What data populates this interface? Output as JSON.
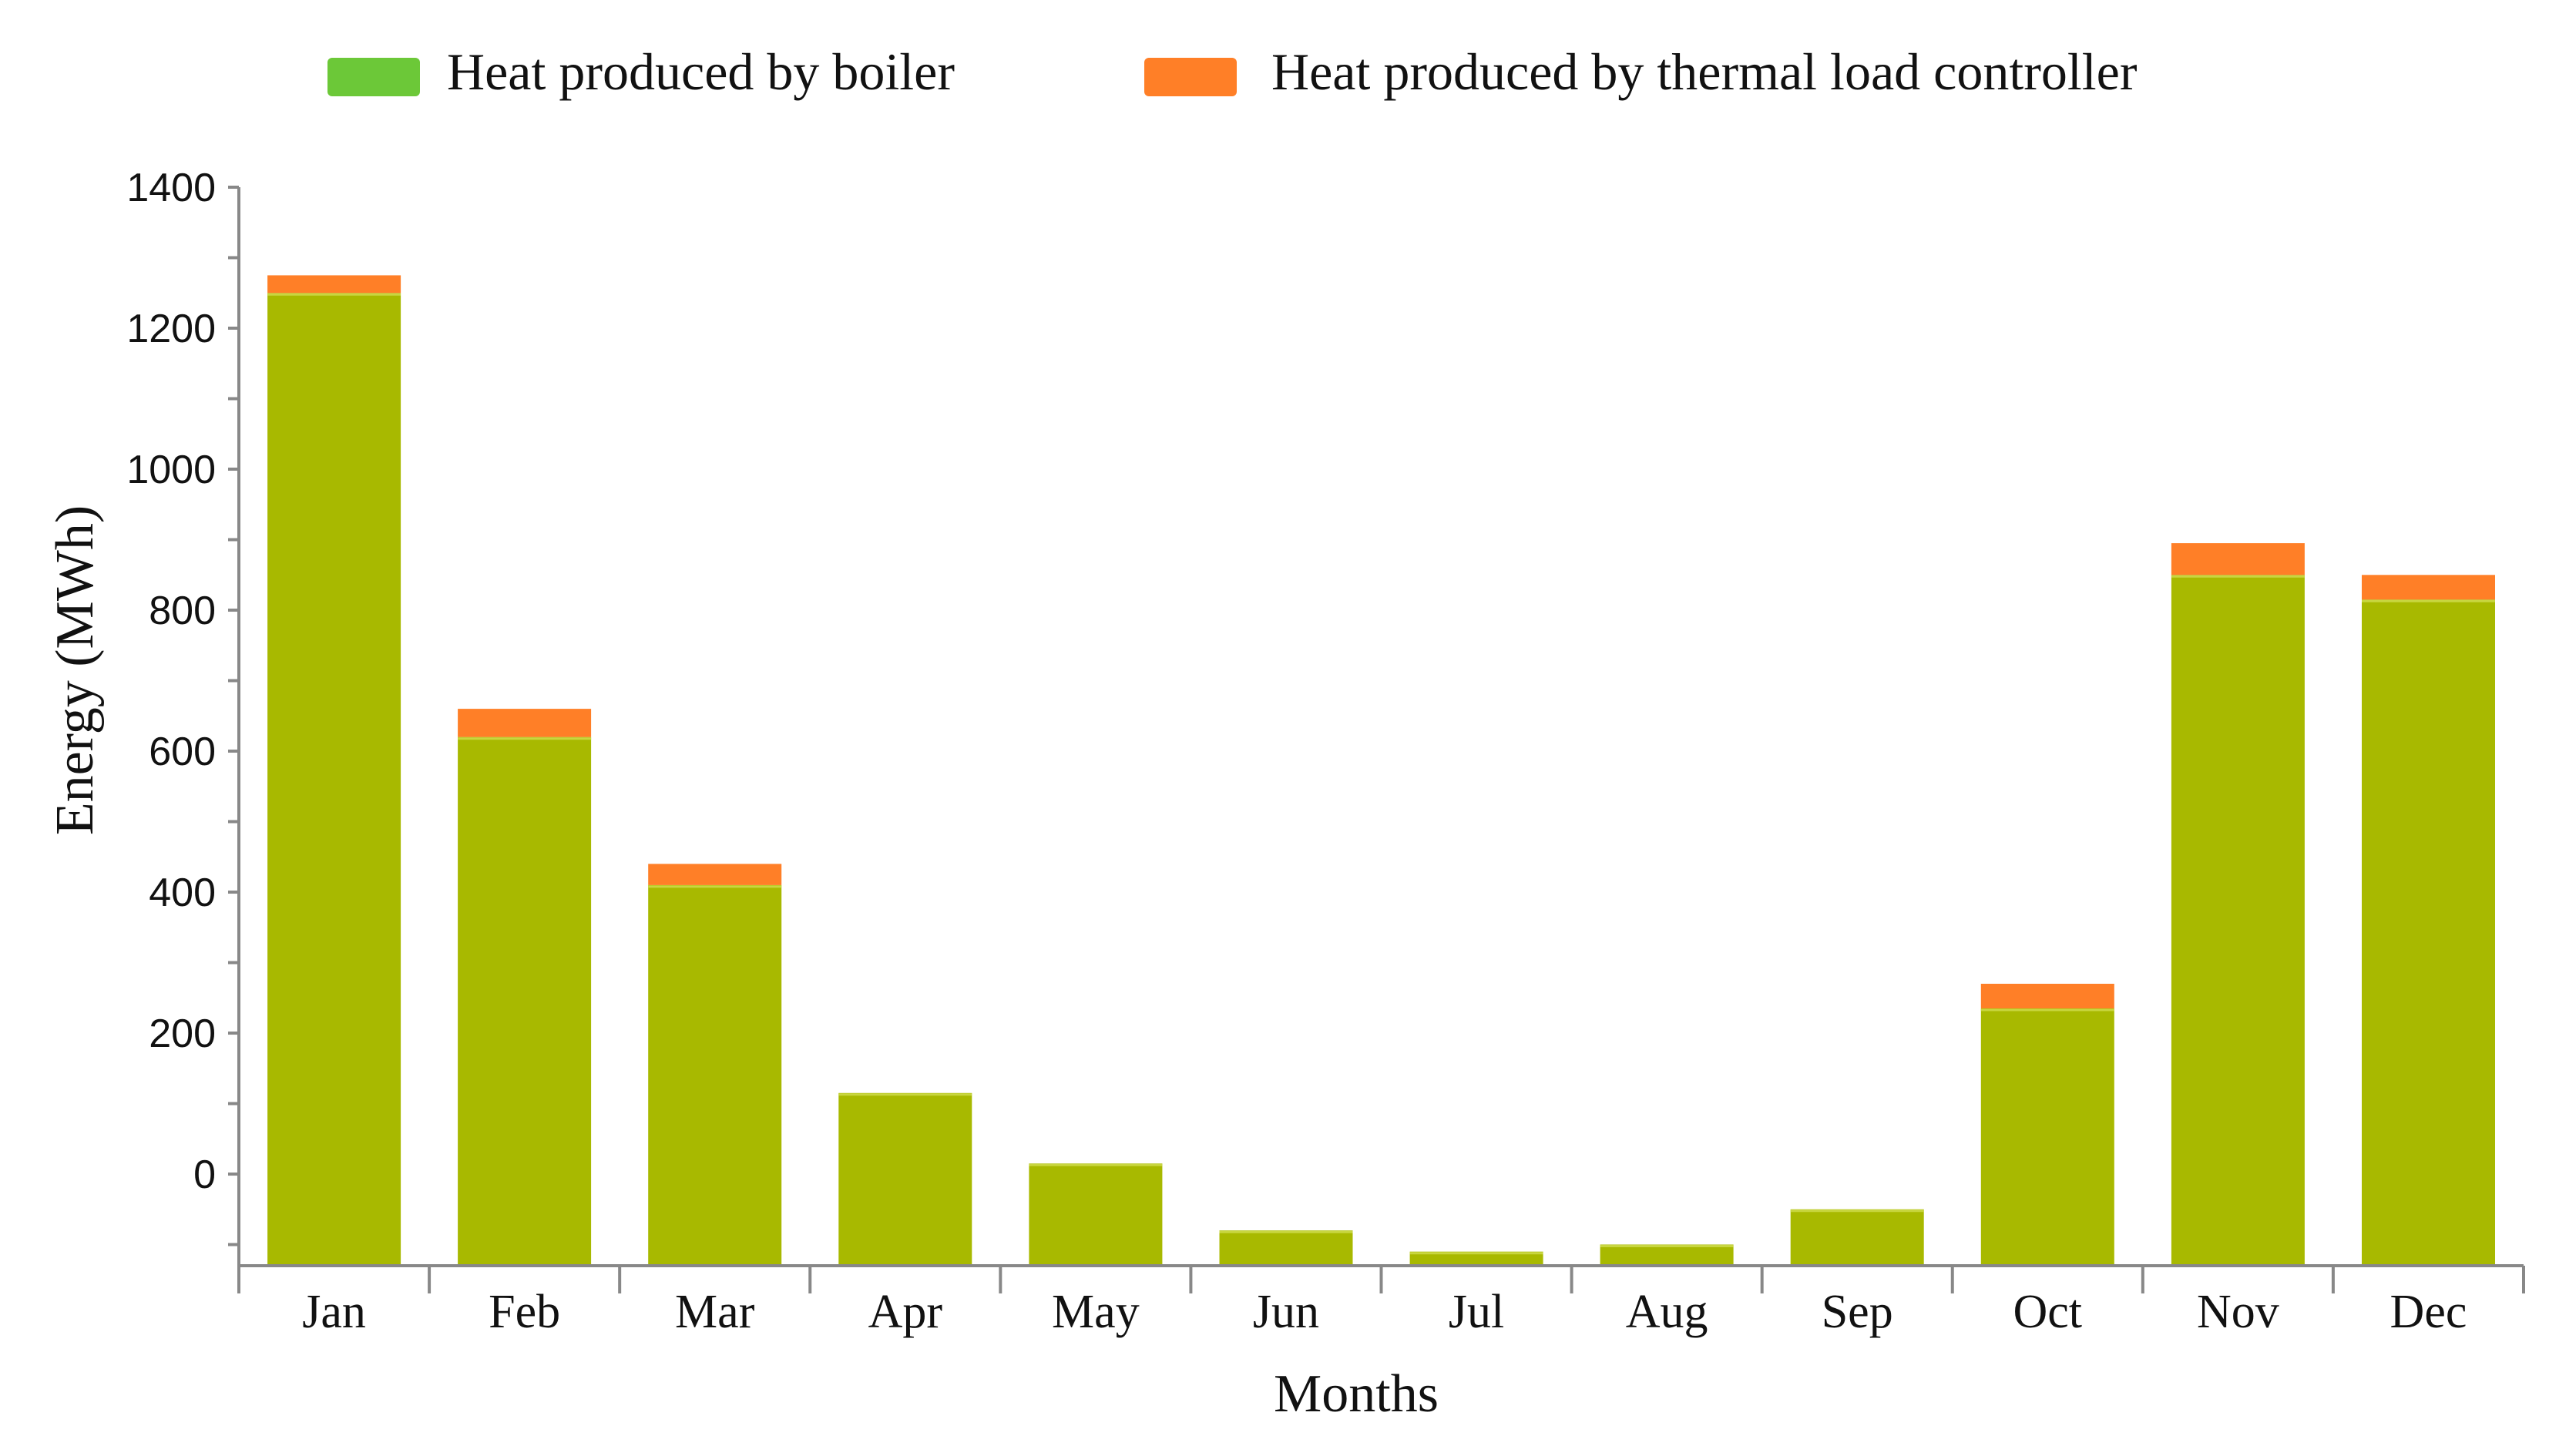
{
  "chart_data": {
    "type": "bar",
    "stacked": true,
    "title": "",
    "xlabel": "Months",
    "ylabel": "Energy (MWh)",
    "categories": [
      "Jan",
      "Feb",
      "Mar",
      "Apr",
      "May",
      "Jun",
      "Jul",
      "Aug",
      "Sep",
      "Oct",
      "Nov",
      "Dec"
    ],
    "ylim": [
      -130,
      1400
    ],
    "yticks": [
      0,
      200,
      400,
      600,
      800,
      1000,
      1200,
      1400
    ],
    "ytick_labels": [
      "0",
      "200",
      "400",
      "600",
      "800",
      "1000",
      "1200",
      "1400"
    ],
    "legend_position": "top",
    "series": [
      {
        "name": "Heat produced by boiler",
        "legend_color": "#6cc838",
        "bar_color": "#a8b900",
        "values": [
          1250,
          620,
          410,
          115,
          15,
          -80,
          -110,
          -100,
          -50,
          235,
          850,
          815
        ]
      },
      {
        "name": "Heat produced by thermal load controller",
        "legend_color": "#ff7f27",
        "bar_color": "#ff7f27",
        "values": [
          25,
          40,
          30,
          0,
          0,
          0,
          0,
          0,
          0,
          35,
          45,
          35
        ]
      }
    ]
  }
}
